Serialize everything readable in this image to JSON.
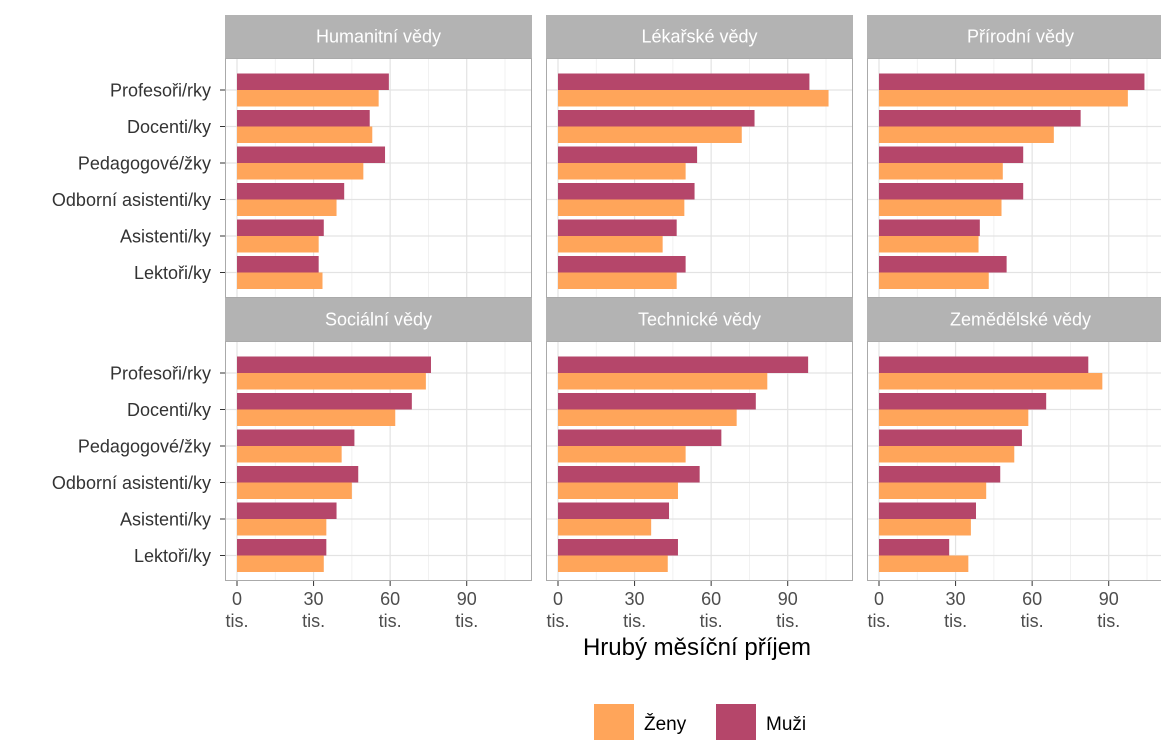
{
  "chart_data": {
    "type": "bar",
    "orientation": "horizontal",
    "xlabel": "Hrubý měsíční příjem",
    "xlim": [
      0,
      105
    ],
    "xticks": [
      {
        "value": 0,
        "label": "0\ntis."
      },
      {
        "value": 30,
        "label": "30\ntis."
      },
      {
        "value": 60,
        "label": "60\ntis."
      },
      {
        "value": 90,
        "label": "90\ntis."
      }
    ],
    "categories": [
      "Profesoři/rky",
      "Docenti/ky",
      "Pedagogové/žky",
      "Odborní asistenti/ky",
      "Asistenti/ky",
      "Lektoři/ky"
    ],
    "series_names": [
      "Ženy",
      "Muži"
    ],
    "legend_position": "bottom",
    "grid": true,
    "colors": {
      "zeny": "#FFA55A",
      "muzi": "#B5466A",
      "strip": "#B3B3B3",
      "grid": "#E3E3E3"
    },
    "panels": [
      {
        "title": "Humanitní vědy",
        "series": [
          {
            "name": "Ženy",
            "values": [
              55.5,
              53,
              49.5,
              39,
              32,
              33.5
            ]
          },
          {
            "name": "Muži",
            "values": [
              59.5,
              52,
              58,
              42,
              34,
              32
            ]
          }
        ]
      },
      {
        "title": "Lékařské vědy",
        "series": [
          {
            "name": "Ženy",
            "values": [
              106,
              72,
              50,
              49.5,
              41,
              46.5
            ]
          },
          {
            "name": "Muži",
            "values": [
              98.5,
              77,
              54.5,
              53.5,
              46.5,
              50
            ]
          }
        ]
      },
      {
        "title": "Přírodní vědy",
        "series": [
          {
            "name": "Ženy",
            "values": [
              97.5,
              68.5,
              48.5,
              48,
              39,
              43
            ]
          },
          {
            "name": "Muži",
            "values": [
              104,
              79,
              56.5,
              56.5,
              39.5,
              50
            ]
          }
        ]
      },
      {
        "title": "Sociální vědy",
        "series": [
          {
            "name": "Ženy",
            "values": [
              74,
              62,
              41,
              45,
              35,
              34
            ]
          },
          {
            "name": "Muži",
            "values": [
              76,
              68.5,
              46,
              47.5,
              39,
              35
            ]
          }
        ]
      },
      {
        "title": "Technické vědy",
        "series": [
          {
            "name": "Ženy",
            "values": [
              82,
              70,
              50,
              47,
              36.5,
              43
            ]
          },
          {
            "name": "Muži",
            "values": [
              98,
              77.5,
              64,
              55.5,
              43.5,
              47
            ]
          }
        ]
      },
      {
        "title": "Zemědělské vědy",
        "series": [
          {
            "name": "Ženy",
            "values": [
              87.5,
              58.5,
              53,
              42,
              36,
              35
            ]
          },
          {
            "name": "Muži",
            "values": [
              82,
              65.5,
              56,
              47.5,
              38,
              27.5
            ]
          }
        ]
      }
    ]
  }
}
